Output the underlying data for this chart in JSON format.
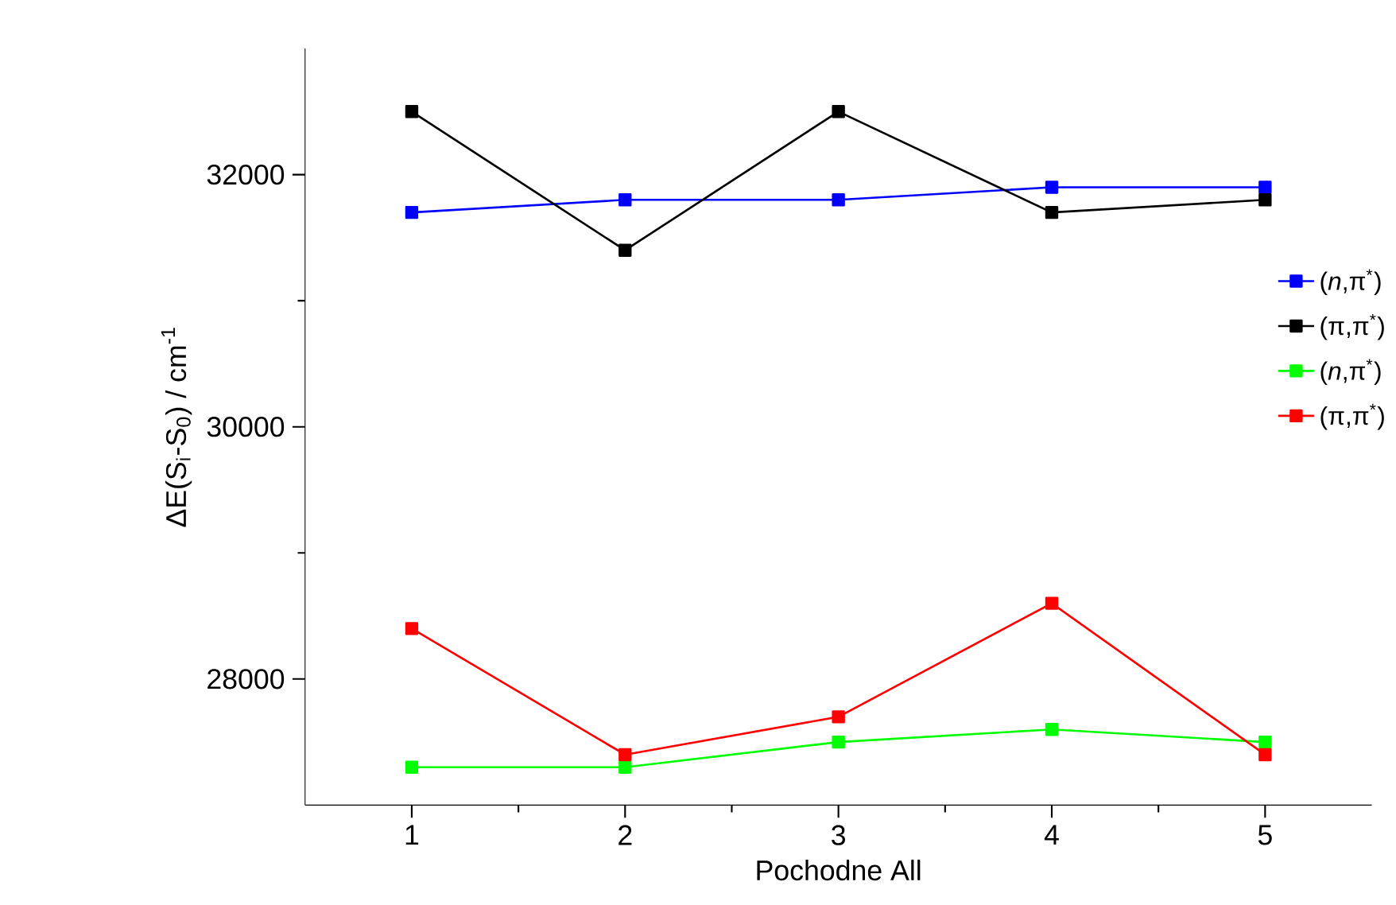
{
  "chart_data": {
    "type": "line",
    "xlabel": "Pochodne All",
    "ylabel": "ΔE(S$_{i}$-S$_{0}$) / cm$^{-1}$",
    "x": [
      1,
      2,
      3,
      4,
      5
    ],
    "xlim": [
      0.5,
      5.5
    ],
    "ylim": [
      27000,
      33000
    ],
    "xticks": [
      1,
      2,
      3,
      4,
      5,
      {
        "value": 1.5,
        "label": null
      },
      {
        "value": 2.5,
        "label": null
      },
      {
        "value": 3.5,
        "label": null
      },
      {
        "value": 4.5,
        "label": null
      }
    ],
    "yticks": [
      28000,
      30000,
      32000,
      {
        "value": 29000,
        "label": null
      },
      {
        "value": 31000,
        "label": null
      }
    ],
    "marker": "square",
    "line_style": "solid",
    "legend": "right",
    "series": [
      {
        "name": "(*n*,π$^{*}$)",
        "color": "#0000ff",
        "values": [
          31700,
          31800,
          31800,
          31900,
          31900
        ]
      },
      {
        "name": "(π,π$^{*}$)",
        "color": "#000000",
        "values": [
          32500,
          31400,
          32500,
          31700,
          31800
        ]
      },
      {
        "name": "(*n*,π$^{*}$)",
        "color": "#00ff00",
        "values": [
          27300,
          27300,
          27500,
          27600,
          27500
        ]
      },
      {
        "name": "(π,π$^{*}$)",
        "color": "#ff0000",
        "values": [
          28400,
          27400,
          27700,
          28600,
          27400
        ]
      }
    ]
  }
}
